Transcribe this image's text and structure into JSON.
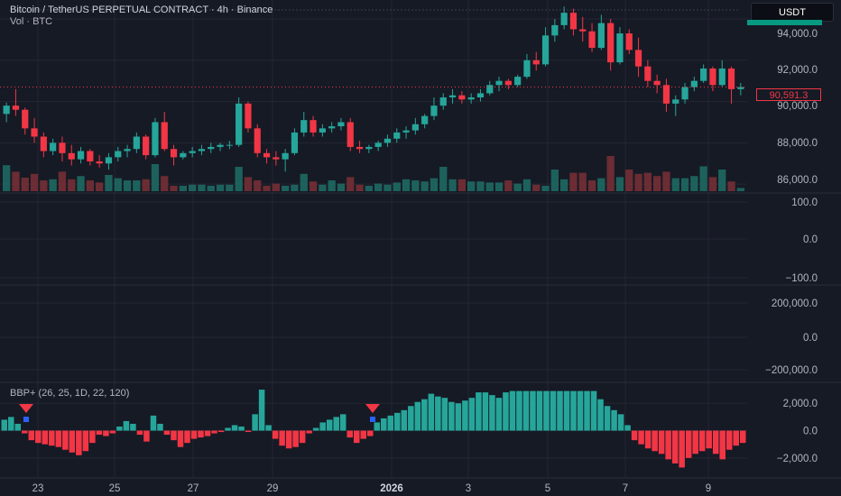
{
  "header": {
    "title": "Bitcoin / TetherUS PERPETUAL CONTRACT · 4h · Binance",
    "volume_label": "Vol · BTC",
    "currency": "USDT"
  },
  "indicator": {
    "label": "BBP+ (26, 25, 1D, 22, 120)"
  },
  "last_price": "90,591.3",
  "colors": {
    "background": "#161a25",
    "up": "#26a69a",
    "down": "#f23645",
    "grid": "#242733",
    "axis_text": "#b2b5be"
  },
  "chart_data": [
    {
      "type": "candlestick",
      "axis_ticks": [
        "94,000.0",
        "92,000.0",
        "90,000.0",
        "88,000.0",
        "86,000.0"
      ],
      "ylim": [
        85700,
        94700
      ],
      "candles": [
        [
          89400,
          89950,
          89000,
          89800
        ],
        [
          89800,
          90600,
          89300,
          89600
        ],
        [
          89600,
          89700,
          88400,
          88700
        ],
        [
          88700,
          89200,
          88000,
          88300
        ],
        [
          88300,
          88500,
          87300,
          87600
        ],
        [
          87600,
          88200,
          87400,
          88000
        ],
        [
          88000,
          88300,
          87100,
          87500
        ],
        [
          87500,
          87900,
          86900,
          87200
        ],
        [
          87200,
          87800,
          87000,
          87600
        ],
        [
          87600,
          87700,
          86900,
          87100
        ],
        [
          87100,
          87400,
          86800,
          87000
        ],
        [
          87000,
          87500,
          86700,
          87300
        ],
        [
          87300,
          87800,
          87100,
          87600
        ],
        [
          87600,
          87900,
          87300,
          87700
        ],
        [
          87700,
          88500,
          87500,
          88300
        ],
        [
          88300,
          88400,
          87200,
          87400
        ],
        [
          87400,
          89200,
          87300,
          89000
        ],
        [
          89000,
          89500,
          87600,
          87700
        ],
        [
          87700,
          87900,
          86900,
          87300
        ],
        [
          87300,
          87600,
          87200,
          87500
        ],
        [
          87500,
          87800,
          87300,
          87600
        ],
        [
          87600,
          87900,
          87400,
          87700
        ],
        [
          87700,
          88000,
          87500,
          87800
        ],
        [
          87800,
          88000,
          87600,
          87900
        ],
        [
          87900,
          88100,
          87700,
          87900
        ],
        [
          87900,
          90200,
          87800,
          89900
        ],
        [
          89900,
          90000,
          88500,
          88700
        ],
        [
          88700,
          88900,
          87300,
          87500
        ],
        [
          87500,
          87700,
          87000,
          87300
        ],
        [
          87300,
          87600,
          86900,
          87200
        ],
        [
          87200,
          87700,
          86600,
          87500
        ],
        [
          87500,
          88700,
          87400,
          88500
        ],
        [
          88500,
          89500,
          88300,
          89100
        ],
        [
          89100,
          89300,
          88300,
          88500
        ],
        [
          88500,
          88900,
          88300,
          88700
        ],
        [
          88700,
          89000,
          88500,
          88800
        ],
        [
          88800,
          89200,
          88600,
          89000
        ],
        [
          89000,
          89200,
          87600,
          87800
        ],
        [
          87800,
          88100,
          87500,
          87700
        ],
        [
          87700,
          87900,
          87500,
          87800
        ],
        [
          87800,
          88100,
          87600,
          88000
        ],
        [
          88000,
          88400,
          87800,
          88200
        ],
        [
          88200,
          88700,
          88000,
          88500
        ],
        [
          88500,
          88800,
          88200,
          88600
        ],
        [
          88600,
          89200,
          88400,
          88900
        ],
        [
          88900,
          89400,
          88700,
          89300
        ],
        [
          89300,
          90200,
          89100,
          89800
        ],
        [
          89800,
          90400,
          89600,
          90200
        ],
        [
          90200,
          90600,
          89900,
          90300
        ],
        [
          90300,
          90500,
          89900,
          90100
        ],
        [
          90100,
          90400,
          89900,
          90200
        ],
        [
          90200,
          90600,
          90000,
          90400
        ],
        [
          90400,
          91000,
          90300,
          90800
        ],
        [
          90800,
          91200,
          90500,
          91000
        ],
        [
          91000,
          91100,
          90600,
          90800
        ],
        [
          90800,
          91300,
          90700,
          91200
        ],
        [
          91200,
          92300,
          91100,
          92000
        ],
        [
          92000,
          92400,
          91500,
          91800
        ],
        [
          91800,
          93600,
          91700,
          93200
        ],
        [
          93200,
          94000,
          92900,
          93700
        ],
        [
          93700,
          94600,
          93500,
          94300
        ],
        [
          94300,
          94500,
          93200,
          93500
        ],
        [
          93500,
          94100,
          92900,
          93400
        ],
        [
          93400,
          93800,
          92400,
          92600
        ],
        [
          92600,
          94200,
          92500,
          93800
        ],
        [
          93800,
          94000,
          91500,
          91900
        ],
        [
          91900,
          93600,
          91800,
          93300
        ],
        [
          93300,
          93500,
          92300,
          92500
        ],
        [
          92500,
          93100,
          91200,
          91700
        ],
        [
          91700,
          92000,
          90700,
          91000
        ],
        [
          91000,
          91300,
          90400,
          90800
        ],
        [
          90800,
          91100,
          89500,
          89900
        ],
        [
          89900,
          90300,
          89300,
          90100
        ],
        [
          90100,
          90900,
          89900,
          90700
        ],
        [
          90700,
          91200,
          90500,
          91000
        ],
        [
          91000,
          91800,
          90900,
          91600
        ],
        [
          91600,
          91700,
          90500,
          90800
        ],
        [
          90800,
          92000,
          90700,
          91600
        ],
        [
          91600,
          91700,
          89900,
          90600
        ],
        [
          90600,
          90900,
          90300,
          90700
        ]
      ],
      "volume_ylim": [
        0,
        1
      ],
      "volumes": [
        0.48,
        0.36,
        0.25,
        0.32,
        0.2,
        0.22,
        0.36,
        0.22,
        0.28,
        0.2,
        0.16,
        0.3,
        0.24,
        0.2,
        0.2,
        0.22,
        0.5,
        0.28,
        0.1,
        0.1,
        0.12,
        0.12,
        0.1,
        0.12,
        0.12,
        0.45,
        0.26,
        0.2,
        0.1,
        0.14,
        0.1,
        0.12,
        0.32,
        0.18,
        0.12,
        0.2,
        0.14,
        0.26,
        0.12,
        0.1,
        0.14,
        0.12,
        0.16,
        0.22,
        0.2,
        0.18,
        0.24,
        0.45,
        0.22,
        0.22,
        0.18,
        0.18,
        0.16,
        0.16,
        0.2,
        0.14,
        0.22,
        0.12,
        0.1,
        0.4,
        0.22,
        0.34,
        0.34,
        0.2,
        0.24,
        0.65,
        0.26,
        0.4,
        0.32,
        0.34,
        0.28,
        0.36,
        0.24,
        0.24,
        0.28,
        0.46,
        0.26,
        0.4,
        0.18,
        0.06
      ]
    },
    {
      "type": "line",
      "axis_ticks": [
        "100.0",
        "0.0",
        "−100.0"
      ]
    },
    {
      "type": "line",
      "axis_ticks": [
        "200,000.0",
        "0.0",
        "−200,000.0"
      ]
    },
    {
      "type": "bar",
      "title": "BBP+ (26, 25, 1D, 22, 120)",
      "axis_ticks": [
        "2,000.0",
        "0.0",
        "−2,000.0"
      ],
      "ylim": [
        -3200,
        3400
      ],
      "values": [
        800,
        1000,
        500,
        -200,
        -700,
        -900,
        -1000,
        -1100,
        -1200,
        -1400,
        -1600,
        -1800,
        -1500,
        -900,
        -300,
        -400,
        -200,
        300,
        700,
        500,
        -300,
        -800,
        1100,
        500,
        -300,
        -700,
        -1200,
        -900,
        -600,
        -500,
        -400,
        -200,
        -100,
        200,
        400,
        300,
        -100,
        1200,
        3000,
        400,
        -600,
        -1100,
        -1300,
        -1200,
        -900,
        -200,
        200,
        600,
        800,
        1000,
        1200,
        -500,
        -900,
        -600,
        -400,
        600,
        900,
        1100,
        1300,
        1500,
        1800,
        2100,
        2300,
        2700,
        2500,
        2400,
        2100,
        2000,
        2200,
        2400,
        2800,
        2800,
        2600,
        2400,
        2800,
        2900,
        2900,
        2900,
        2900,
        2900,
        2900,
        2900,
        2900,
        2900,
        2900,
        2900,
        2900,
        2900,
        2300,
        1800,
        1500,
        1200,
        400,
        -700,
        -1000,
        -1300,
        -1500,
        -1700,
        -2100,
        -2400,
        -2700,
        -2000,
        -1700,
        -1500,
        -1300,
        -1700,
        -2100,
        -1400,
        -1100,
        -900
      ],
      "markers": [
        "down-triangle",
        "down-triangle"
      ],
      "x_tick_labels": [
        "23",
        "25",
        "27",
        "29",
        "2026",
        "3",
        "5",
        "7",
        "9"
      ]
    }
  ]
}
